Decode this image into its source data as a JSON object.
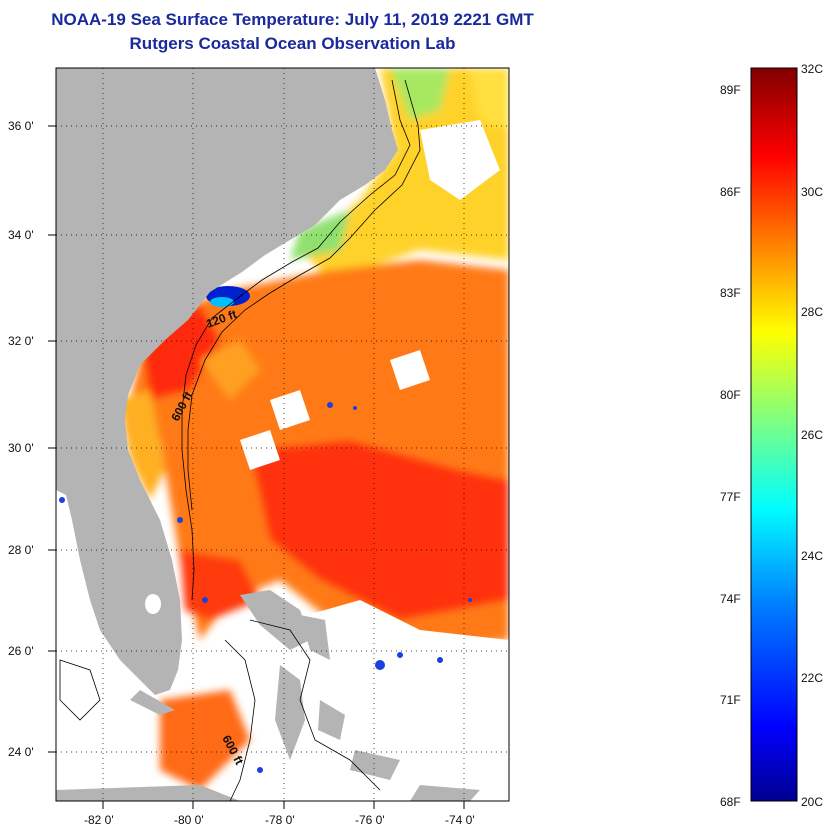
{
  "title_line1": "NOAA-19 Sea Surface Temperature:  July 11, 2019 2221 GMT",
  "title_line2": "Rutgers Coastal Ocean Observation Lab",
  "lat_labels": [
    "36 0'",
    "34 0'",
    "32 0'",
    "30 0'",
    "28 0'",
    "26 0'",
    "24 0'"
  ],
  "lon_labels": [
    "-82 0'",
    "-80 0'",
    "-78 0'",
    "-76 0'",
    "-74 0'"
  ],
  "isobath_labels": [
    "120 ft",
    "600 ft",
    "600 ft"
  ],
  "colorbar": {
    "fahrenheit": [
      "89F",
      "86F",
      "83F",
      "80F",
      "77F",
      "74F",
      "71F",
      "68F"
    ],
    "celsius": [
      "32C",
      "30C",
      "28C",
      "26C",
      "24C",
      "22C",
      "20C"
    ],
    "colors": [
      "#00008f",
      "#0000ff",
      "#0080ff",
      "#00ffff",
      "#80ff80",
      "#ffff00",
      "#ff8000",
      "#ff0000",
      "#800000"
    ]
  },
  "colors": {
    "land": "#b4b4b4",
    "title": "#1a2a9c",
    "warm": "#ff5a10",
    "hot": "#ff2a00",
    "mild": "#ffb000"
  }
}
